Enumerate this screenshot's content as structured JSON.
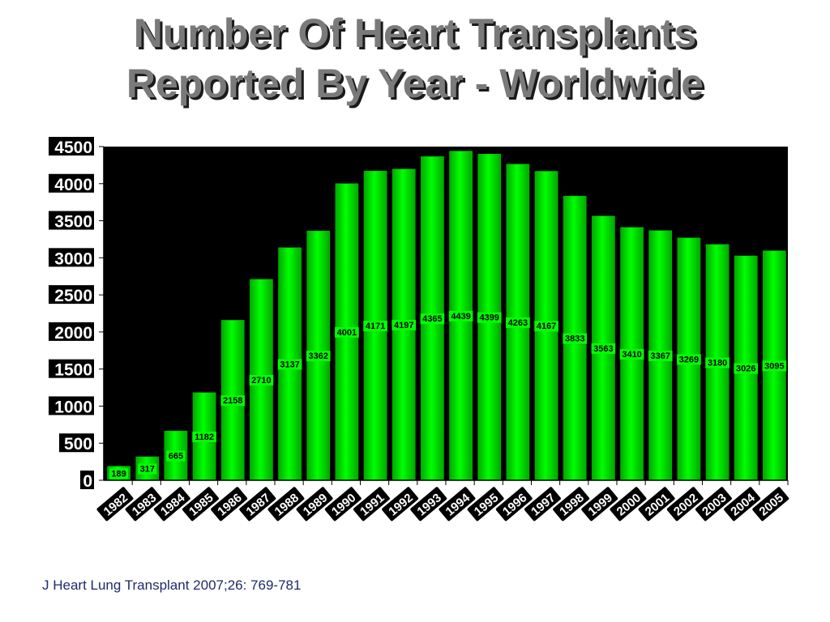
{
  "title_line1": "Number Of Heart Transplants",
  "title_line2": "Reported By Year - Worldwide",
  "citation": "J Heart Lung Transplant 2007;26: 769-781",
  "colors": {
    "bar": "#00ff00",
    "bar_dark": "#00a800",
    "plot_background": "#000000",
    "title": "#7a7a7a"
  },
  "chart_data": {
    "type": "bar",
    "categories": [
      "1982",
      "1983",
      "1984",
      "1985",
      "1986",
      "1987",
      "1988",
      "1989",
      "1990",
      "1991",
      "1992",
      "1993",
      "1994",
      "1995",
      "1996",
      "1997",
      "1998",
      "1999",
      "2000",
      "2001",
      "2002",
      "2003",
      "2004",
      "2005"
    ],
    "values": [
      189,
      317,
      665,
      1182,
      2158,
      2710,
      3137,
      3362,
      4001,
      4171,
      4197,
      4365,
      4439,
      4399,
      4263,
      4167,
      3833,
      3563,
      3410,
      3367,
      3269,
      3180,
      3026,
      3095
    ],
    "ylim": [
      0,
      4500
    ],
    "yticks": [
      0,
      500,
      1000,
      1500,
      2000,
      2500,
      3000,
      3500,
      4000,
      4500
    ],
    "grid": false,
    "legend": "none"
  }
}
